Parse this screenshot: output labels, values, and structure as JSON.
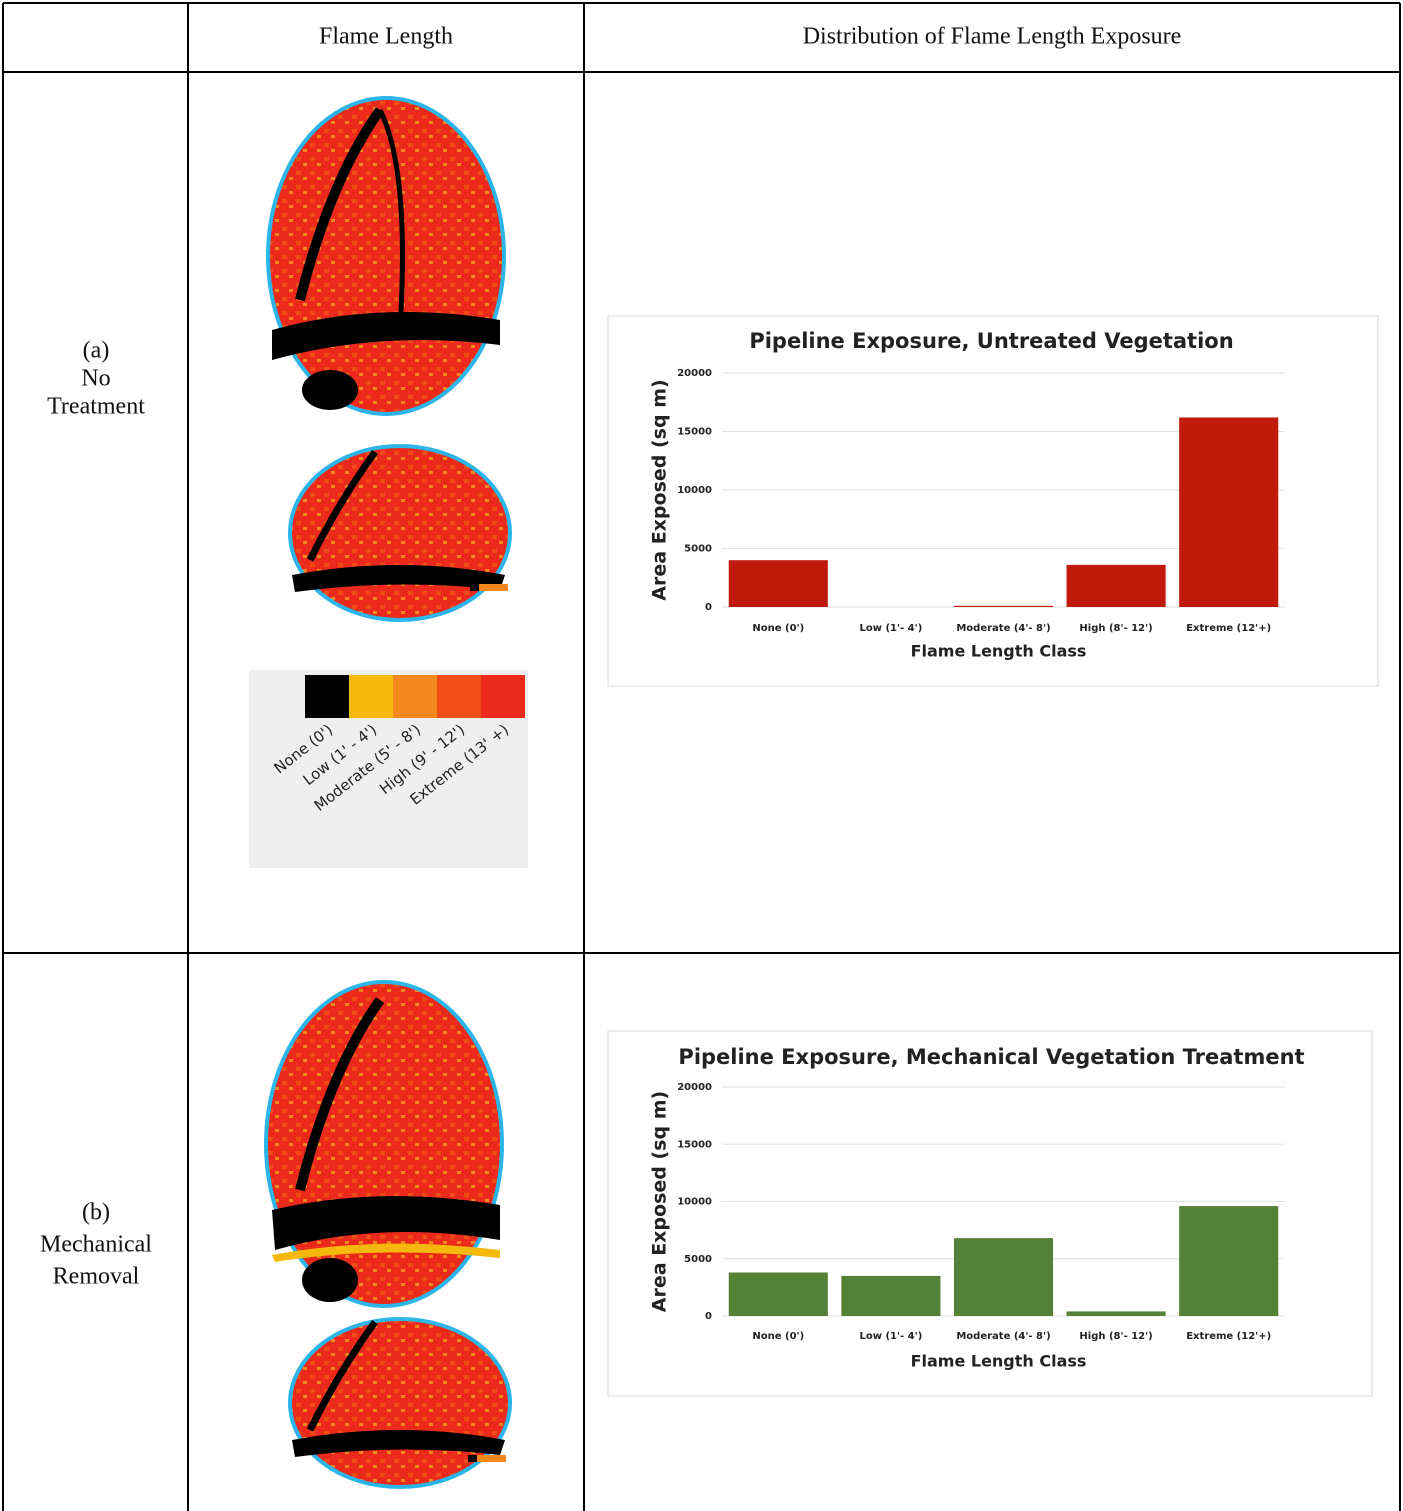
{
  "table": {
    "header": [
      "Flame Length",
      "Distribution of Flame Length Exposure"
    ],
    "rows": [
      {
        "label": [
          "(a)",
          "No",
          "Treatment"
        ]
      },
      {
        "label": [
          "(b)",
          "Mechanical",
          "Removal"
        ]
      }
    ]
  },
  "legend": {
    "labels": [
      "None (0')",
      "Low (1' - 4')",
      "Moderate (5' - 8')",
      "High (9' - 12')",
      "Extreme (13' +)"
    ],
    "colors": [
      "#000000",
      "#f5b80c",
      "#f5891e",
      "#f04d17",
      "#ec2a1c"
    ]
  },
  "chart_data": [
    {
      "type": "bar",
      "title": "Pipeline Exposure, Untreated Vegetation",
      "x_label": "Flame Length Class",
      "y_label": "Area Exposed (sq m)",
      "categories": [
        "None (0')",
        "Low (1'- 4')",
        "Moderate (4'- 8')",
        "High (8'- 12')",
        "Extreme (12'+)"
      ],
      "values": [
        4000,
        0,
        100,
        3600,
        16200
      ],
      "color": "#c01a0c",
      "ylim": [
        0,
        20000
      ],
      "yticks": [
        0,
        5000,
        10000,
        15000,
        20000
      ],
      "grid": true
    },
    {
      "type": "bar",
      "title": "Pipeline Exposure, Mechanical Vegetation Treatment",
      "x_label": "Flame Length Class",
      "y_label": "Area Exposed (sq m)",
      "categories": [
        "None (0')",
        "Low (1'- 4')",
        "Moderate (4'- 8')",
        "High (8'- 12')",
        "Extreme (12'+)"
      ],
      "values": [
        3800,
        3500,
        6800,
        400,
        9600
      ],
      "color": "#538135",
      "ylim": [
        0,
        20000
      ],
      "yticks": [
        0,
        5000,
        10000,
        15000,
        20000
      ],
      "grid": true
    }
  ]
}
